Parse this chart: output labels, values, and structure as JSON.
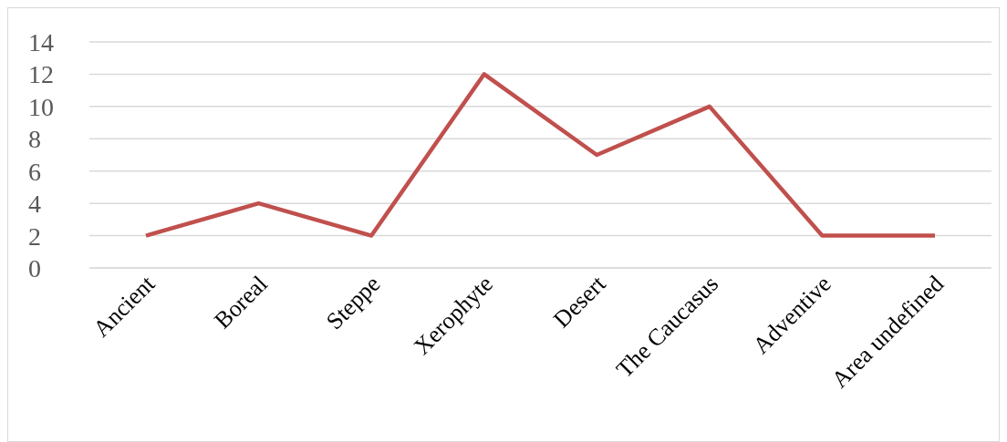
{
  "chart_data": {
    "type": "line",
    "categories": [
      "Ancient",
      "Boreal",
      "Steppe",
      "Xerophyte",
      "Desert",
      "The Caucasus",
      "Adventive",
      "Area undefined"
    ],
    "series": [
      {
        "color": "#c0504d",
        "values": [
          2,
          4,
          2,
          12,
          7,
          10,
          2,
          2
        ]
      }
    ],
    "ylim": [
      0,
      14
    ],
    "yticks": [
      0,
      2,
      4,
      6,
      8,
      10,
      12,
      14
    ],
    "grid": "y",
    "legend": false,
    "marker": "none",
    "line_style": "solid"
  }
}
